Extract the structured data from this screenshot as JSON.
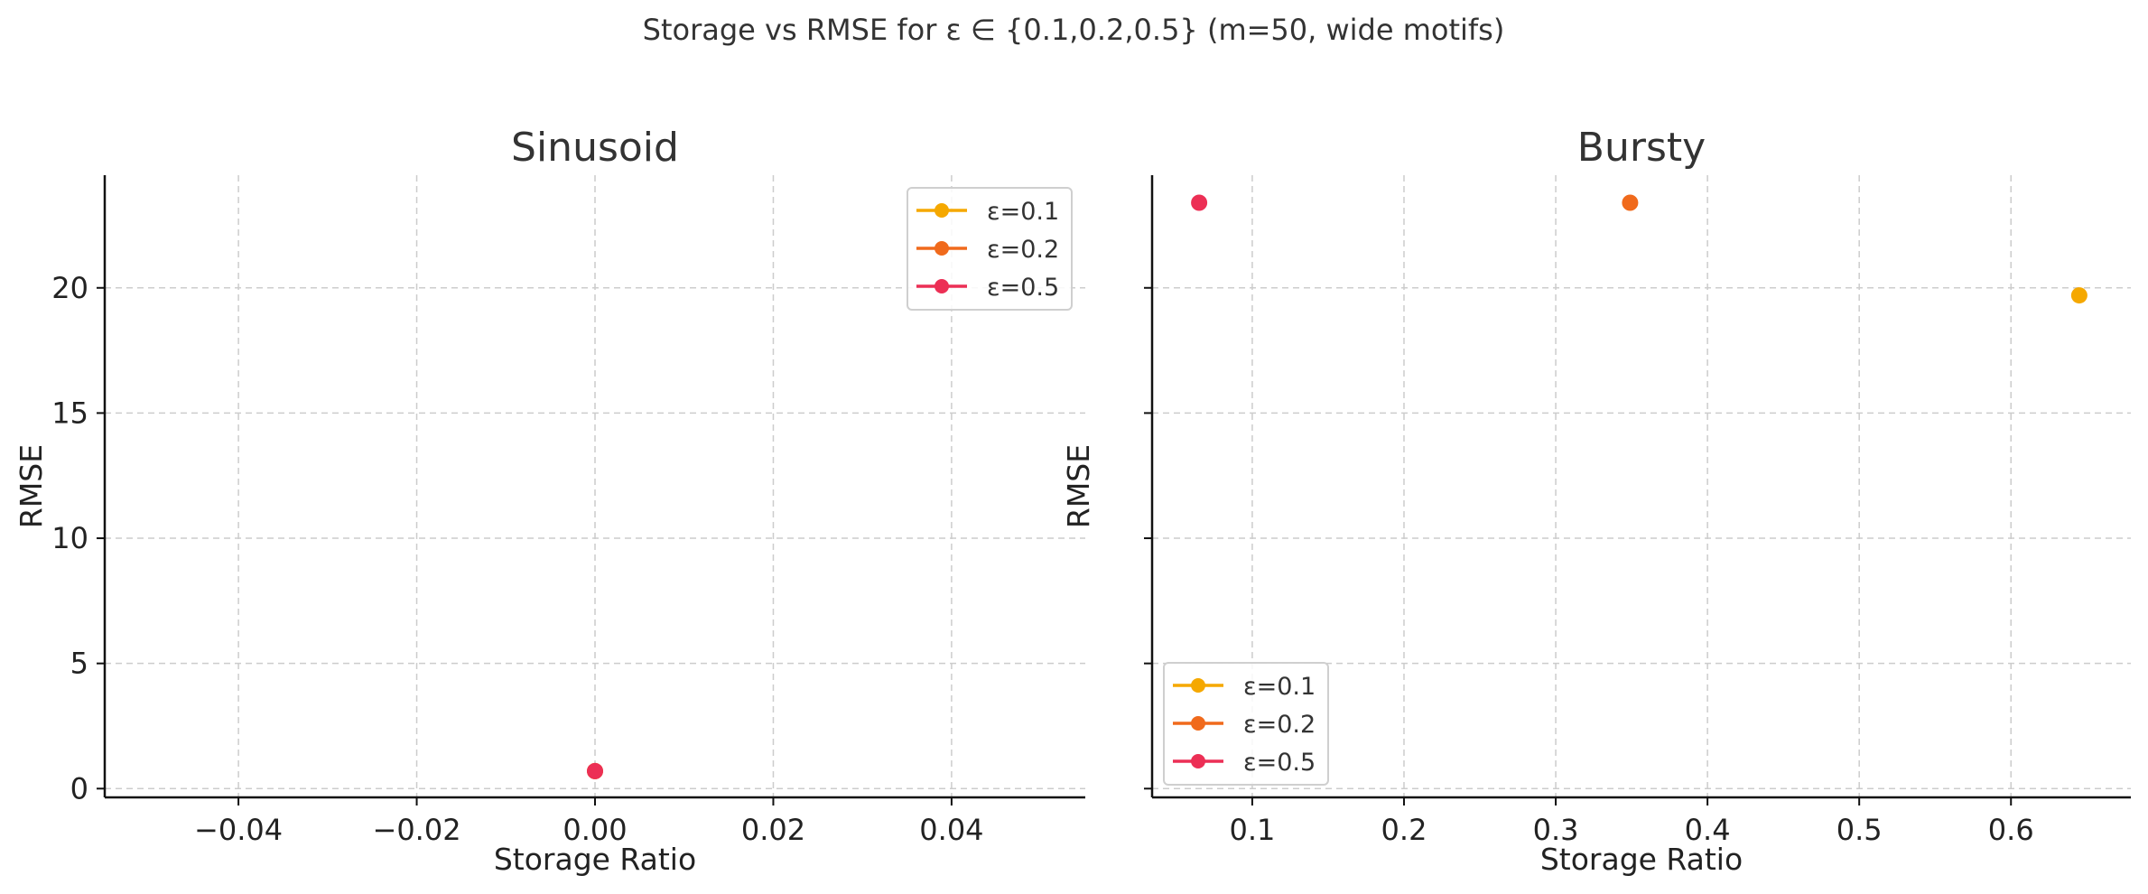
{
  "figure": {
    "suptitle": "Storage vs RMSE for ε ∈ {0.1,0.2,0.5} (m=50, wide motifs)"
  },
  "colors": {
    "eps_0_1": "#f5a800",
    "eps_0_2": "#f06a1c",
    "eps_0_5": "#ec2f55",
    "grid": "#cccccc"
  },
  "chart_data": [
    {
      "type": "scatter",
      "title": "Sinusoid",
      "xlabel": "Storage Ratio",
      "ylabel": "RMSE",
      "xlim": [
        -0.055,
        0.055
      ],
      "ylim": [
        -0.35,
        24.5
      ],
      "xticks": [
        -0.04,
        -0.02,
        0.0,
        0.02,
        0.04
      ],
      "xtick_labels": [
        "−0.04",
        "−0.02",
        "0.00",
        "0.02",
        "0.04"
      ],
      "yticks": [
        0,
        5,
        10,
        15,
        20
      ],
      "ytick_labels": [
        "0",
        "5",
        "10",
        "15",
        "20"
      ],
      "grid": true,
      "legend_position": "top-right",
      "series": [
        {
          "name": "ε=0.1",
          "color": "#f5a800",
          "x": [
            0.0
          ],
          "y": [
            0.7
          ]
        },
        {
          "name": "ε=0.2",
          "color": "#f06a1c",
          "x": [
            0.0
          ],
          "y": [
            0.7
          ]
        },
        {
          "name": "ε=0.5",
          "color": "#ec2f55",
          "x": [
            0.0
          ],
          "y": [
            0.7
          ]
        }
      ]
    },
    {
      "type": "scatter",
      "title": "Bursty",
      "xlabel": "Storage Ratio",
      "ylabel": "RMSE",
      "xlim": [
        0.034,
        0.679
      ],
      "ylim": [
        -0.35,
        24.5
      ],
      "xticks": [
        0.1,
        0.2,
        0.3,
        0.4,
        0.5,
        0.6
      ],
      "xtick_labels": [
        "0.1",
        "0.2",
        "0.3",
        "0.4",
        "0.5",
        "0.6"
      ],
      "yticks": [
        0,
        5,
        10,
        15,
        20
      ],
      "ytick_labels": [],
      "grid": true,
      "legend_position": "bottom-left",
      "series": [
        {
          "name": "ε=0.1",
          "color": "#f5a800",
          "x": [
            0.645
          ],
          "y": [
            19.7
          ]
        },
        {
          "name": "ε=0.2",
          "color": "#f06a1c",
          "x": [
            0.349
          ],
          "y": [
            23.4
          ]
        },
        {
          "name": "ε=0.5",
          "color": "#ec2f55",
          "x": [
            0.065
          ],
          "y": [
            23.4
          ]
        }
      ]
    }
  ]
}
